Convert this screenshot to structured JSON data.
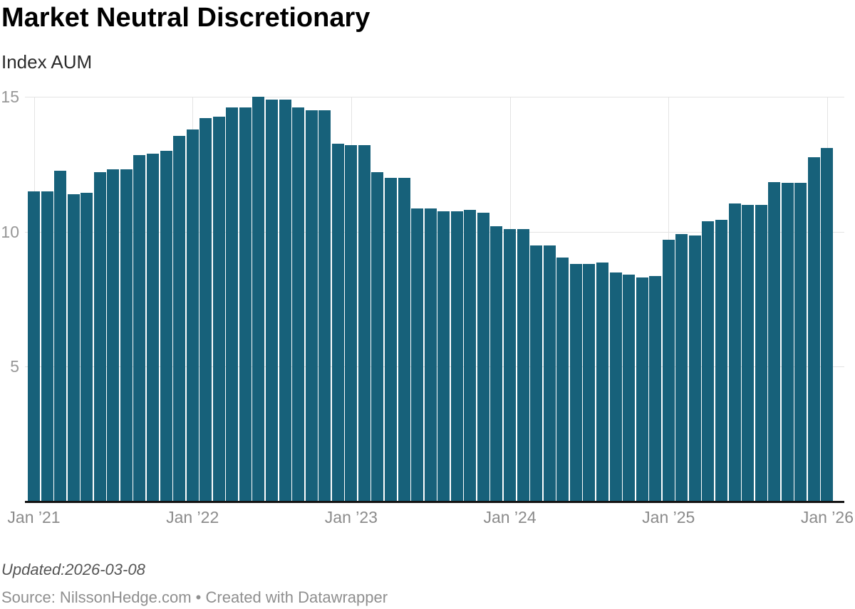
{
  "header": {
    "title": "Market Neutral Discretionary",
    "subtitle": "Index AUM"
  },
  "footer": {
    "updated": "Updated:2026-03-08",
    "source": "Source: NilssonHedge.com • Created with Datawrapper"
  },
  "chart_data": {
    "type": "bar",
    "title": "Market Neutral Discretionary",
    "subtitle": "Index AUM",
    "ylabel": "Index AUM",
    "xlabel": "",
    "ylim": [
      0,
      15
    ],
    "y_ticks": [
      15,
      10,
      5
    ],
    "y_tick_labels": [
      "15",
      "10",
      "5"
    ],
    "grid": true,
    "legend": "none",
    "bar_color": "#17617a",
    "x_tick_labels": [
      "Jan ’21",
      "Jan ’22",
      "Jan ’23",
      "Jan ’24",
      "Jan ’25",
      "Jan ’26"
    ],
    "x_tick_month_indices": [
      0,
      12,
      24,
      36,
      48,
      60
    ],
    "categories": [
      "Jan 2021",
      "Feb 2021",
      "Mar 2021",
      "Apr 2021",
      "May 2021",
      "Jun 2021",
      "Jul 2021",
      "Aug 2021",
      "Sep 2021",
      "Oct 2021",
      "Nov 2021",
      "Dec 2021",
      "Jan 2022",
      "Feb 2022",
      "Mar 2022",
      "Apr 2022",
      "May 2022",
      "Jun 2022",
      "Jul 2022",
      "Aug 2022",
      "Sep 2022",
      "Oct 2022",
      "Nov 2022",
      "Dec 2022",
      "Jan 2023",
      "Feb 2023",
      "Mar 2023",
      "Apr 2023",
      "May 2023",
      "Jun 2023",
      "Jul 2023",
      "Aug 2023",
      "Sep 2023",
      "Oct 2023",
      "Nov 2023",
      "Dec 2023",
      "Jan 2024",
      "Feb 2024",
      "Mar 2024",
      "Apr 2024",
      "May 2024",
      "Jun 2024",
      "Jul 2024",
      "Aug 2024",
      "Sep 2024",
      "Oct 2024",
      "Nov 2024",
      "Dec 2024",
      "Jan 2025",
      "Feb 2025",
      "Mar 2025",
      "Apr 2025",
      "May 2025",
      "Jun 2025",
      "Jul 2025",
      "Aug 2025",
      "Sep 2025",
      "Oct 2025",
      "Nov 2025",
      "Dec 2025",
      "Jan 2026"
    ],
    "values": [
      11.5,
      11.5,
      12.25,
      11.4,
      11.45,
      12.2,
      12.3,
      12.3,
      12.85,
      12.9,
      13.0,
      13.55,
      13.8,
      14.2,
      14.25,
      14.6,
      14.6,
      15.0,
      14.9,
      14.9,
      14.6,
      14.5,
      14.5,
      13.25,
      13.2,
      13.2,
      12.2,
      12.0,
      12.0,
      10.85,
      10.85,
      10.75,
      10.75,
      10.8,
      10.7,
      10.2,
      10.1,
      10.1,
      9.5,
      9.5,
      9.05,
      8.8,
      8.8,
      8.85,
      8.5,
      8.4,
      8.3,
      8.35,
      9.7,
      9.9,
      9.85,
      10.4,
      10.45,
      11.05,
      11.0,
      11.0,
      11.85,
      11.8,
      11.8,
      12.75,
      13.1
    ]
  }
}
